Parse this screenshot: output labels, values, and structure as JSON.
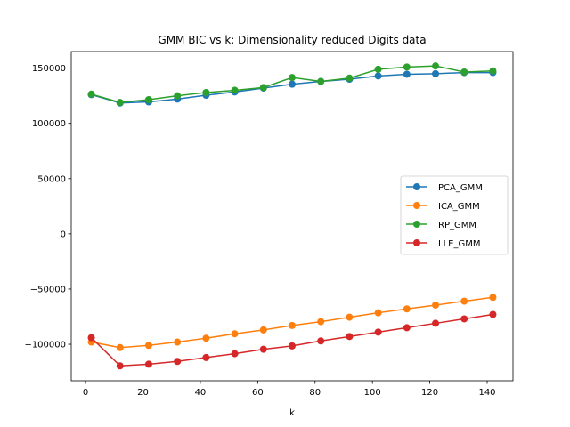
{
  "chart_data": {
    "type": "line",
    "title": "GMM BIC vs k: Dimensionality reduced Digits data",
    "xlabel": "k",
    "ylabel": "",
    "xlim": [
      -5,
      149
    ],
    "ylim": [
      -133000,
      165000
    ],
    "xticks": [
      0,
      20,
      40,
      60,
      80,
      100,
      120,
      140
    ],
    "yticks": [
      -100000,
      -50000,
      0,
      50000,
      100000,
      150000
    ],
    "xtick_labels": [
      "0",
      "20",
      "40",
      "60",
      "80",
      "100",
      "120",
      "140"
    ],
    "ytick_labels": [
      "−100000",
      "−50000",
      "0",
      "50000",
      "100000",
      "150000"
    ],
    "grid": false,
    "legend_position": "center-right",
    "x": [
      2,
      12,
      22,
      32,
      42,
      52,
      62,
      72,
      82,
      92,
      102,
      112,
      122,
      132,
      142
    ],
    "series": [
      {
        "name": "PCA_GMM",
        "color": "#1f77b4",
        "values": [
          126000,
          118500,
          119500,
          122000,
          125500,
          128500,
          132000,
          135500,
          138000,
          140000,
          143000,
          144500,
          145000,
          146000,
          146000
        ]
      },
      {
        "name": "ICA_GMM",
        "color": "#ff7f0e",
        "values": [
          -98000,
          -103000,
          -101000,
          -98000,
          -94500,
          -90500,
          -87000,
          -83000,
          -79500,
          -75500,
          -71500,
          -68000,
          -64500,
          -61000,
          -57500
        ]
      },
      {
        "name": "RP_GMM",
        "color": "#2ca02c",
        "values": [
          126500,
          119000,
          121500,
          125000,
          128000,
          130000,
          132500,
          141500,
          138000,
          141000,
          149000,
          151000,
          152000,
          146500,
          147500
        ]
      },
      {
        "name": "LLE_GMM",
        "color": "#d62728",
        "values": [
          -94000,
          -119500,
          -118000,
          -115500,
          -112000,
          -108500,
          -104500,
          -101500,
          -97000,
          -93000,
          -89000,
          -85000,
          -81000,
          -77000,
          -73000
        ]
      }
    ]
  }
}
